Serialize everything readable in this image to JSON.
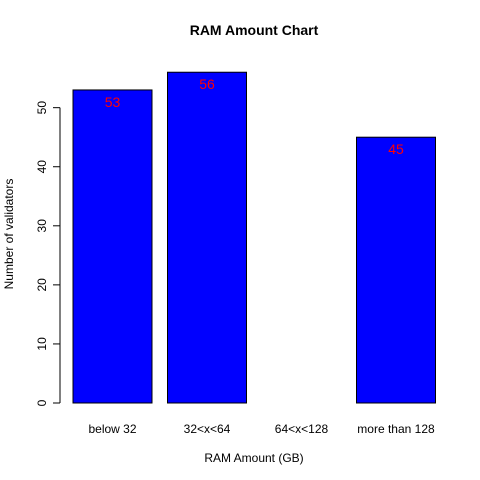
{
  "chart_data": {
    "type": "bar",
    "title": "RAM Amount Chart",
    "xlabel": "RAM Amount (GB)",
    "ylabel": "Number of validators",
    "categories": [
      "below 32",
      "32<x<64",
      "64<x<128",
      "more than 128"
    ],
    "values": [
      53,
      56,
      0,
      45
    ],
    "data_labels": [
      "53",
      "56",
      "",
      "45"
    ],
    "ylim": [
      0,
      58.24
    ],
    "y_ticks": [
      0,
      10,
      20,
      30,
      40,
      50
    ],
    "grid": false,
    "legend": "none",
    "colors": {
      "bar_fill": "#0000ff",
      "bar_stroke": "#000000",
      "label_color": "#ff0000"
    }
  }
}
